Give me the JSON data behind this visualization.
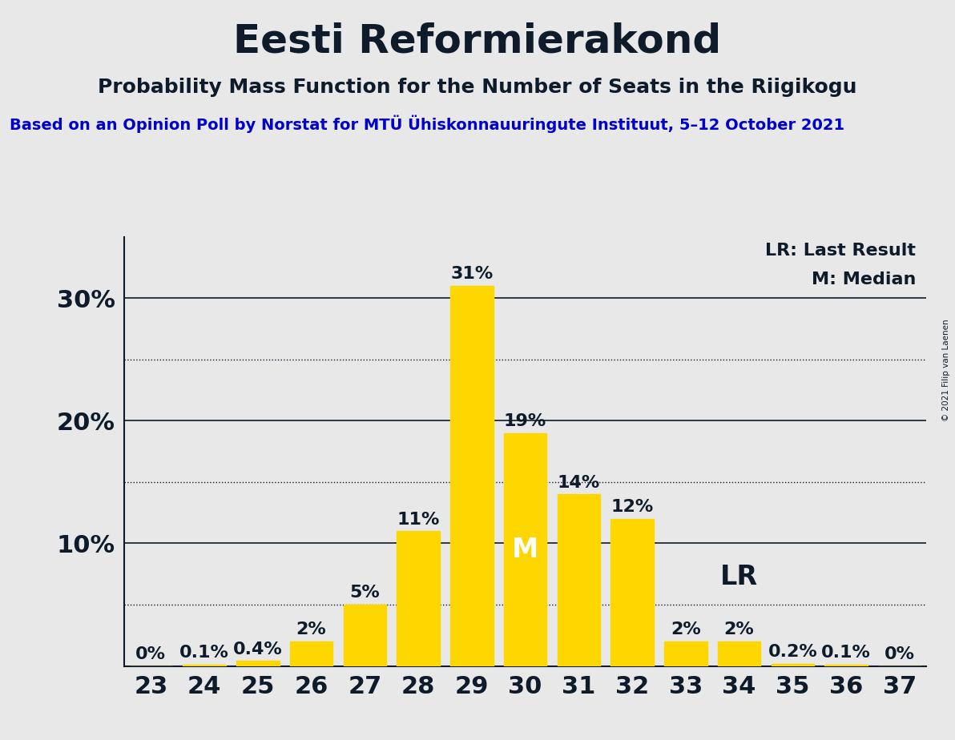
{
  "title": "Eesti Reformierakond",
  "subtitle": "Probability Mass Function for the Number of Seats in the Riigikogu",
  "source": "Based on an Opinion Poll by Norstat for MTÜ Ühiskonnauuringute Instituut, 5–12 October 2021",
  "copyright": "© 2021 Filip van Laenen",
  "seats": [
    23,
    24,
    25,
    26,
    27,
    28,
    29,
    30,
    31,
    32,
    33,
    34,
    35,
    36,
    37
  ],
  "probabilities": [
    0.0,
    0.1,
    0.4,
    2.0,
    5.0,
    11.0,
    31.0,
    19.0,
    14.0,
    12.0,
    2.0,
    2.0,
    0.2,
    0.1,
    0.0
  ],
  "bar_color": "#FFD700",
  "background_color": "#E8E8E8",
  "median_seat": 30,
  "lr_seat": 34,
  "legend_lr": "LR: Last Result",
  "legend_m": "M: Median",
  "yticks": [
    10,
    20,
    30
  ],
  "dotted_yticks": [
    5,
    15,
    25
  ],
  "ylim": [
    0,
    35
  ],
  "title_fontsize": 36,
  "subtitle_fontsize": 18,
  "source_fontsize": 14,
  "axis_fontsize": 22,
  "bar_label_fontsize": 16,
  "text_color": "#0D1B2A"
}
